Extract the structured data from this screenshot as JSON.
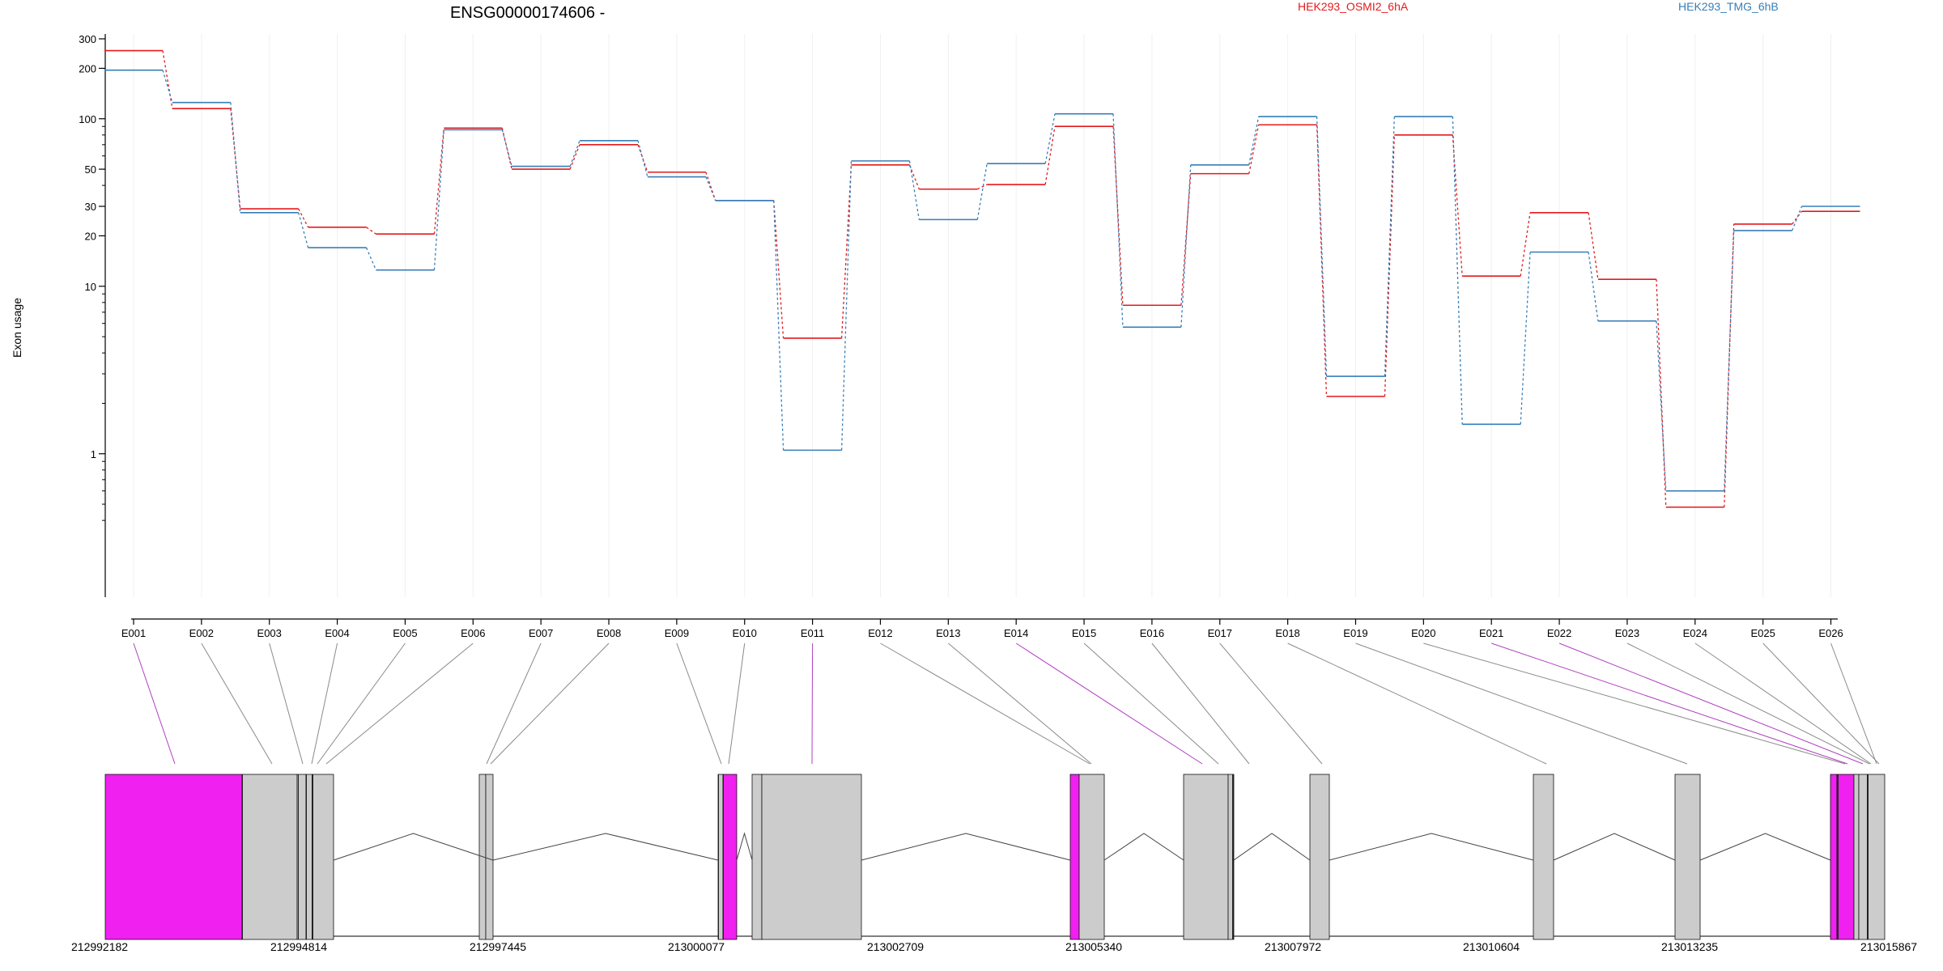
{
  "chart_data": {
    "type": "line",
    "title": "ENSG00000174606 -",
    "ylabel": "Exon usage",
    "yscale": "log",
    "ylim": [
      0.3,
      300
    ],
    "y_ticks": [
      {
        "value": 300,
        "label": "300"
      },
      {
        "value": 200,
        "label": "200"
      },
      {
        "value": 100,
        "label": "100"
      },
      {
        "value": 50,
        "label": "50"
      },
      {
        "value": 30,
        "label": "30"
      },
      {
        "value": 20,
        "label": "20"
      },
      {
        "value": 10,
        "label": "10"
      },
      {
        "value": 1,
        "label": "1"
      }
    ],
    "categories": [
      "E001",
      "E002",
      "E003",
      "E004",
      "E005",
      "E006",
      "E007",
      "E008",
      "E009",
      "E010",
      "E011",
      "E012",
      "E013",
      "E014",
      "E015",
      "E016",
      "E017",
      "E018",
      "E019",
      "E020",
      "E021",
      "E022",
      "E023",
      "E024",
      "E025",
      "E026"
    ],
    "legend_placement": "top",
    "series": [
      {
        "name": "HEK293_OSMI2_6hA",
        "color": "#e41a1c",
        "values": [
          255,
          115,
          29,
          22.5,
          20.5,
          88,
          50,
          70,
          48,
          32.5,
          4.9,
          53,
          38,
          40.5,
          90,
          7.7,
          47,
          92,
          2.2,
          80,
          11.5,
          27.5,
          11,
          0.48,
          23.5,
          28
        ]
      },
      {
        "name": "HEK293_TMG_6hB",
        "color": "#377eb8",
        "values": [
          195,
          125,
          27.5,
          17,
          12.5,
          86,
          52,
          74,
          45,
          32.5,
          1.05,
          56,
          25,
          54,
          107,
          5.7,
          53,
          103,
          2.9,
          103,
          1.5,
          16,
          6.2,
          0.6,
          21.5,
          30
        ]
      }
    ],
    "gene_model": {
      "coord_ticks": [
        "212992182",
        "212994814",
        "212997445",
        "213000077",
        "213002709",
        "213005340",
        "213007972",
        "213010604",
        "213013235",
        "213015867"
      ],
      "highlight_color": "#f020f0",
      "box_color": "#cccccc"
    }
  }
}
